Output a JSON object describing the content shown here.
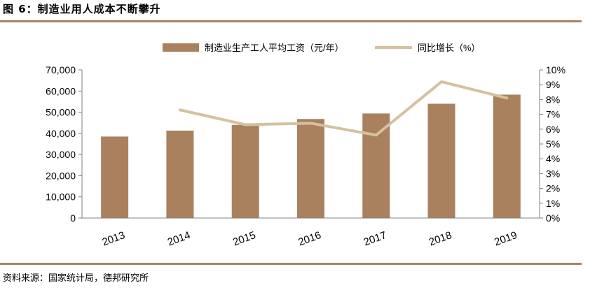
{
  "figure": {
    "title": "图 6：制造业用人成本不断攀升",
    "source": "资料来源：国家统计局，德邦研究所"
  },
  "chart_data": {
    "type": "bar",
    "categories": [
      "2013",
      "2014",
      "2015",
      "2016",
      "2017",
      "2018",
      "2019"
    ],
    "series": [
      {
        "name": "制造业生产工人平均工资（元/年）",
        "type": "bar",
        "axis": "left",
        "color": "#a9815f",
        "values": [
          38500,
          41300,
          44000,
          46800,
          49400,
          54000,
          58300
        ]
      },
      {
        "name": "同比增长（%）",
        "type": "line",
        "axis": "right",
        "color": "#d4c1a0",
        "values": [
          null,
          7.3,
          6.3,
          6.4,
          5.6,
          9.2,
          8.1
        ]
      }
    ],
    "ylim": [
      0,
      70000
    ],
    "yticks": [
      "0",
      "10,000",
      "20,000",
      "30,000",
      "40,000",
      "50,000",
      "60,000",
      "70,000"
    ],
    "y2lim": [
      0,
      10
    ],
    "y2ticks": [
      "0%",
      "1%",
      "2%",
      "3%",
      "4%",
      "5%",
      "6%",
      "7%",
      "8%",
      "9%",
      "10%"
    ],
    "legend_position": "top",
    "grid": false
  }
}
